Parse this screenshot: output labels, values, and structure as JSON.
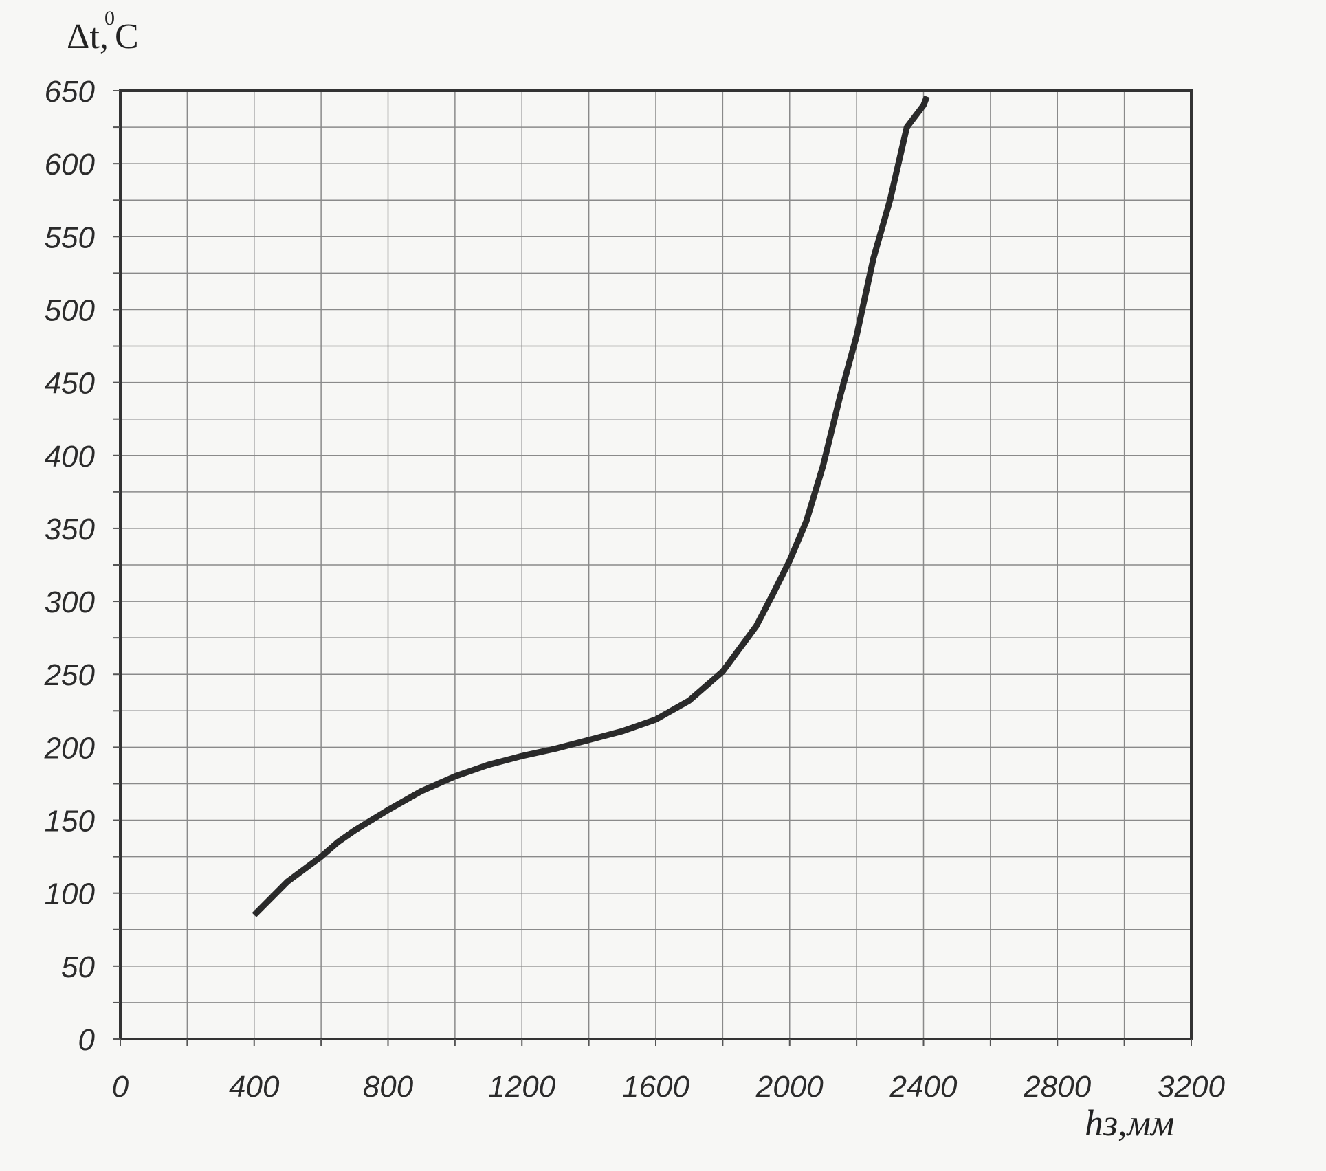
{
  "chart_data": {
    "type": "line",
    "ylabel_main": "Δt,",
    "ylabel_sup": "0",
    "ylabel_unit": "C",
    "xlabel": "hз,мм",
    "xlim": [
      0,
      3200
    ],
    "ylim": [
      0,
      650
    ],
    "x_ticks": [
      "0",
      "400",
      "800",
      "1200",
      "1600",
      "2000",
      "2400",
      "2800",
      "3200"
    ],
    "y_ticks": [
      "0",
      "50",
      "100",
      "150",
      "200",
      "250",
      "300",
      "350",
      "400",
      "450",
      "500",
      "550",
      "600",
      "650"
    ],
    "x_minor_step": 200,
    "y_minor_step": 25,
    "grid": true,
    "line_color": "#2a2a2a",
    "series": [
      {
        "x": [
          400,
          500,
          600,
          650,
          700,
          800,
          900,
          1000,
          1100,
          1200,
          1300,
          1400,
          1500,
          1600,
          1700,
          1800,
          1900,
          1950,
          2000,
          2050,
          2100,
          2150,
          2200,
          2250,
          2300,
          2350,
          2400,
          2410
        ],
        "y": [
          85,
          108,
          125,
          135,
          143,
          157,
          170,
          180,
          188,
          194,
          199,
          205,
          211,
          219,
          232,
          252,
          283,
          305,
          328,
          355,
          393,
          440,
          482,
          535,
          575,
          625,
          640,
          646
        ]
      }
    ]
  }
}
